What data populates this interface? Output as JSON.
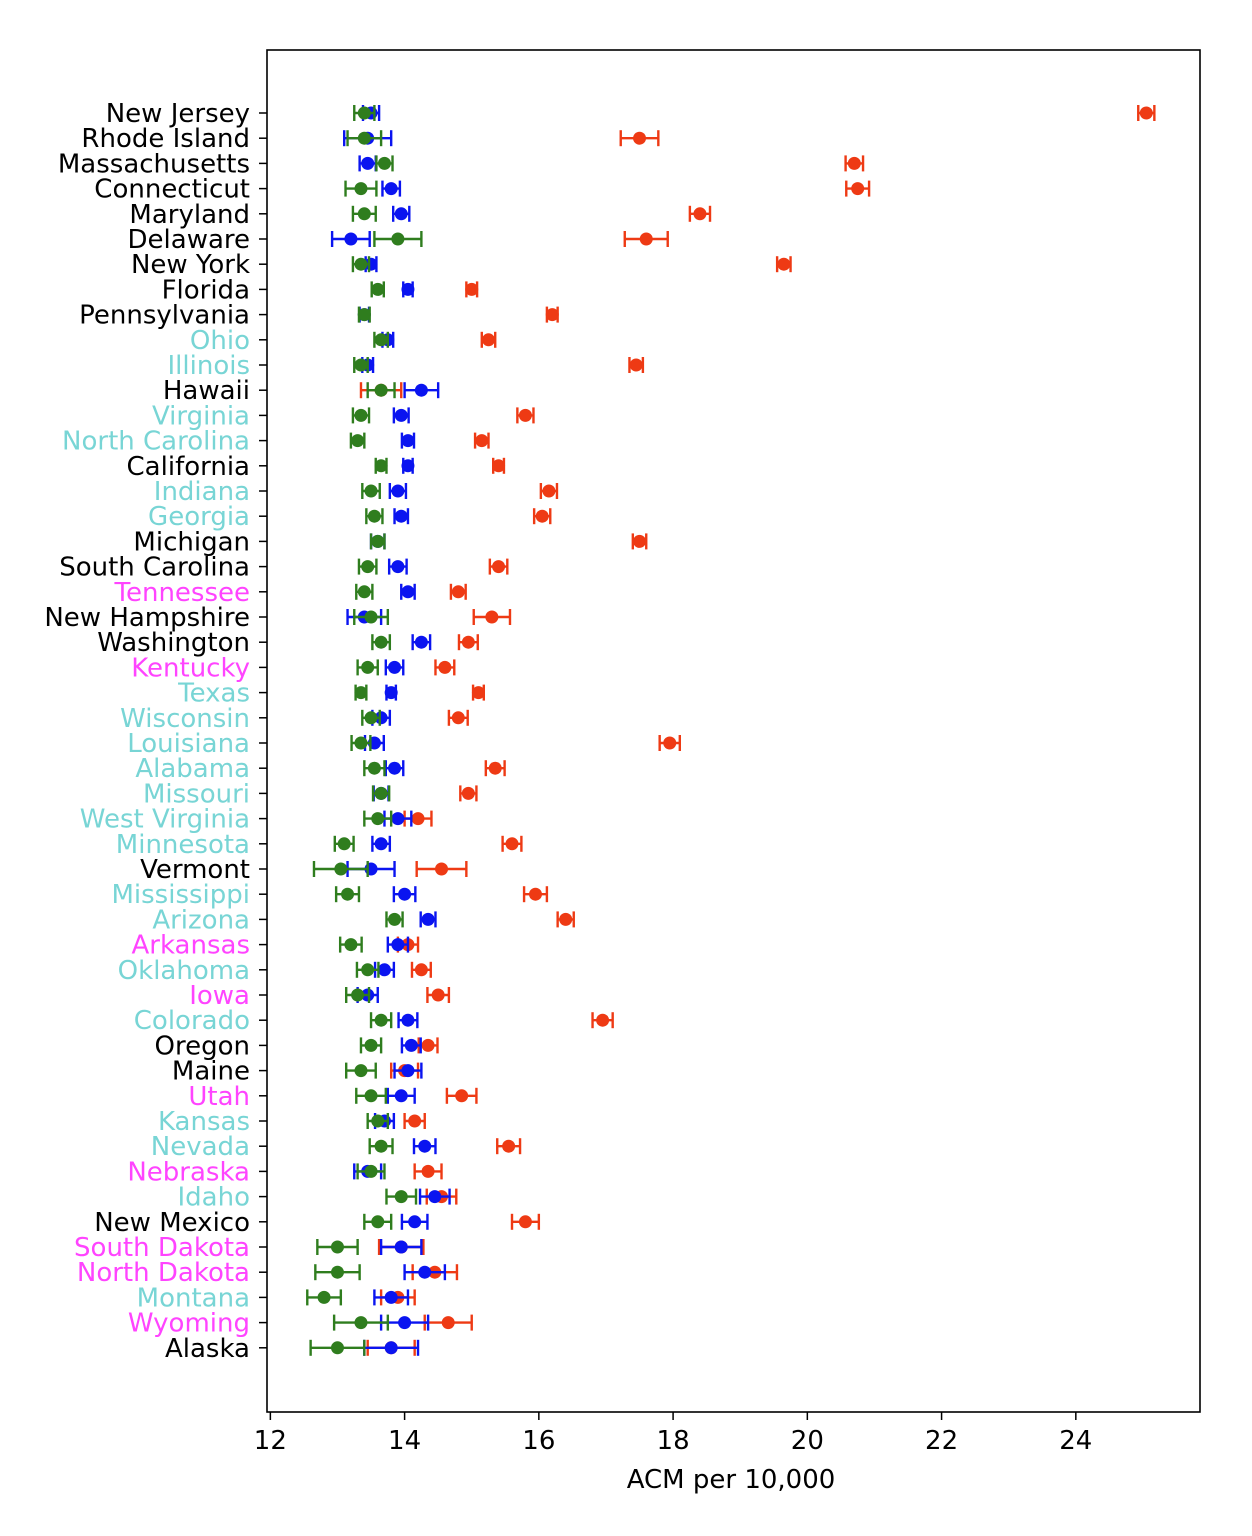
{
  "chart_data": {
    "type": "errorbar-dot",
    "title": "",
    "xlabel": "ACM per 10,000",
    "ylabel": "",
    "xlim": [
      11.95,
      25.85
    ],
    "x_ticks": [
      12,
      14,
      16,
      18,
      20,
      22,
      24
    ],
    "grid": false,
    "colors": {
      "red_series": "#ee3a14",
      "blue_series": "#0a14f0",
      "green_series": "#2f7d1e",
      "label_black": "#000000",
      "label_cyan": "#78d5d5",
      "label_magenta": "#ff44ff"
    },
    "label_color_key": [
      "black",
      "cyan",
      "magenta"
    ],
    "series_names": [
      "red",
      "blue",
      "green"
    ],
    "states": [
      {
        "name": "New Jersey",
        "label_color": "black",
        "red": [
          25.05,
          0.12
        ],
        "blue": [
          13.5,
          0.12
        ],
        "green": [
          13.4,
          0.15
        ]
      },
      {
        "name": "Rhode Island",
        "label_color": "black",
        "red": [
          17.5,
          0.28
        ],
        "blue": [
          13.45,
          0.35
        ],
        "green": [
          13.4,
          0.25
        ]
      },
      {
        "name": "Massachusetts",
        "label_color": "black",
        "red": [
          20.7,
          0.13
        ],
        "blue": [
          13.45,
          0.12
        ],
        "green": [
          13.7,
          0.12
        ]
      },
      {
        "name": "Connecticut",
        "label_color": "black",
        "red": [
          20.75,
          0.17
        ],
        "blue": [
          13.8,
          0.13
        ],
        "green": [
          13.35,
          0.23
        ]
      },
      {
        "name": "Maryland",
        "label_color": "black",
        "red": [
          18.4,
          0.15
        ],
        "blue": [
          13.95,
          0.12
        ],
        "green": [
          13.4,
          0.17
        ]
      },
      {
        "name": "Delaware",
        "label_color": "black",
        "red": [
          17.6,
          0.32
        ],
        "blue": [
          13.2,
          0.28
        ],
        "green": [
          13.9,
          0.35
        ]
      },
      {
        "name": "New York",
        "label_color": "black",
        "red": [
          19.65,
          0.1
        ],
        "blue": [
          13.5,
          0.08
        ],
        "green": [
          13.35,
          0.12
        ]
      },
      {
        "name": "Florida",
        "label_color": "black",
        "red": [
          15.0,
          0.08
        ],
        "blue": [
          14.05,
          0.07
        ],
        "green": [
          13.6,
          0.09
        ]
      },
      {
        "name": "Pennsylvania",
        "label_color": "black",
        "red": [
          16.2,
          0.08
        ],
        "blue": [
          13.4,
          0.07
        ],
        "green": [
          13.4,
          0.08
        ]
      },
      {
        "name": "Ohio",
        "label_color": "cyan",
        "red": [
          15.25,
          0.1
        ],
        "blue": [
          13.75,
          0.08
        ],
        "green": [
          13.65,
          0.1
        ]
      },
      {
        "name": "Illinois",
        "label_color": "cyan",
        "red": [
          17.45,
          0.1
        ],
        "blue": [
          13.45,
          0.08
        ],
        "green": [
          13.35,
          0.1
        ]
      },
      {
        "name": "Hawaii",
        "label_color": "black",
        "red": [
          13.65,
          0.3
        ],
        "blue": [
          14.25,
          0.25
        ],
        "green": [
          13.65,
          0.2
        ]
      },
      {
        "name": "Virginia",
        "label_color": "cyan",
        "red": [
          15.8,
          0.12
        ],
        "blue": [
          13.95,
          0.11
        ],
        "green": [
          13.35,
          0.12
        ]
      },
      {
        "name": "North Carolina",
        "label_color": "cyan",
        "red": [
          15.15,
          0.1
        ],
        "blue": [
          14.05,
          0.09
        ],
        "green": [
          13.3,
          0.1
        ]
      },
      {
        "name": "California",
        "label_color": "black",
        "red": [
          15.4,
          0.08
        ],
        "blue": [
          14.05,
          0.07
        ],
        "green": [
          13.65,
          0.08
        ]
      },
      {
        "name": "Indiana",
        "label_color": "cyan",
        "red": [
          16.15,
          0.12
        ],
        "blue": [
          13.9,
          0.12
        ],
        "green": [
          13.5,
          0.13
        ]
      },
      {
        "name": "Georgia",
        "label_color": "cyan",
        "red": [
          16.05,
          0.12
        ],
        "blue": [
          13.95,
          0.1
        ],
        "green": [
          13.55,
          0.12
        ]
      },
      {
        "name": "Michigan",
        "label_color": "black",
        "red": [
          17.5,
          0.1
        ],
        "blue": [
          13.6,
          0.1
        ],
        "green": [
          13.6,
          0.1
        ]
      },
      {
        "name": "South Carolina",
        "label_color": "black",
        "red": [
          15.4,
          0.13
        ],
        "blue": [
          13.9,
          0.13
        ],
        "green": [
          13.45,
          0.13
        ]
      },
      {
        "name": "Tennessee",
        "label_color": "magenta",
        "red": [
          14.8,
          0.11
        ],
        "blue": [
          14.05,
          0.1
        ],
        "green": [
          13.4,
          0.12
        ]
      },
      {
        "name": "New Hampshire",
        "label_color": "black",
        "red": [
          15.3,
          0.27
        ],
        "blue": [
          13.4,
          0.25
        ],
        "green": [
          13.5,
          0.25
        ]
      },
      {
        "name": "Washington",
        "label_color": "black",
        "red": [
          14.95,
          0.14
        ],
        "blue": [
          14.25,
          0.13
        ],
        "green": [
          13.65,
          0.13
        ]
      },
      {
        "name": "Kentucky",
        "label_color": "magenta",
        "red": [
          14.6,
          0.14
        ],
        "blue": [
          13.85,
          0.13
        ],
        "green": [
          13.45,
          0.15
        ]
      },
      {
        "name": "Texas",
        "label_color": "cyan",
        "red": [
          15.1,
          0.08
        ],
        "blue": [
          13.8,
          0.07
        ],
        "green": [
          13.35,
          0.08
        ]
      },
      {
        "name": "Wisconsin",
        "label_color": "cyan",
        "red": [
          14.8,
          0.14
        ],
        "blue": [
          13.65,
          0.13
        ],
        "green": [
          13.5,
          0.13
        ]
      },
      {
        "name": "Louisiana",
        "label_color": "cyan",
        "red": [
          17.95,
          0.15
        ],
        "blue": [
          13.55,
          0.14
        ],
        "green": [
          13.35,
          0.14
        ]
      },
      {
        "name": "Alabama",
        "label_color": "cyan",
        "red": [
          15.35,
          0.14
        ],
        "blue": [
          13.85,
          0.13
        ],
        "green": [
          13.55,
          0.15
        ]
      },
      {
        "name": "Missouri",
        "label_color": "cyan",
        "red": [
          14.95,
          0.12
        ],
        "blue": [
          13.65,
          0.11
        ],
        "green": [
          13.65,
          0.12
        ]
      },
      {
        "name": "West Virginia",
        "label_color": "cyan",
        "red": [
          14.2,
          0.2
        ],
        "blue": [
          13.9,
          0.2
        ],
        "green": [
          13.6,
          0.2
        ]
      },
      {
        "name": "Minnesota",
        "label_color": "cyan",
        "red": [
          15.6,
          0.14
        ],
        "blue": [
          13.65,
          0.13
        ],
        "green": [
          13.1,
          0.14
        ]
      },
      {
        "name": "Vermont",
        "label_color": "black",
        "red": [
          14.55,
          0.37
        ],
        "blue": [
          13.5,
          0.35
        ],
        "green": [
          13.05,
          0.4
        ]
      },
      {
        "name": "Mississippi",
        "label_color": "cyan",
        "red": [
          15.95,
          0.17
        ],
        "blue": [
          14.0,
          0.16
        ],
        "green": [
          13.15,
          0.17
        ]
      },
      {
        "name": "Arizona",
        "label_color": "cyan",
        "red": [
          16.4,
          0.12
        ],
        "blue": [
          14.35,
          0.11
        ],
        "green": [
          13.85,
          0.12
        ]
      },
      {
        "name": "Arkansas",
        "label_color": "magenta",
        "red": [
          14.05,
          0.15
        ],
        "blue": [
          13.9,
          0.15
        ],
        "green": [
          13.2,
          0.16
        ]
      },
      {
        "name": "Oklahoma",
        "label_color": "cyan",
        "red": [
          14.25,
          0.14
        ],
        "blue": [
          13.7,
          0.14
        ],
        "green": [
          13.45,
          0.16
        ]
      },
      {
        "name": "Iowa",
        "label_color": "magenta",
        "red": [
          14.5,
          0.16
        ],
        "blue": [
          13.45,
          0.15
        ],
        "green": [
          13.3,
          0.17
        ]
      },
      {
        "name": "Colorado",
        "label_color": "cyan",
        "red": [
          16.95,
          0.15
        ],
        "blue": [
          14.05,
          0.14
        ],
        "green": [
          13.65,
          0.15
        ]
      },
      {
        "name": "Oregon",
        "label_color": "black",
        "red": [
          14.35,
          0.14
        ],
        "blue": [
          14.1,
          0.14
        ],
        "green": [
          13.5,
          0.15
        ]
      },
      {
        "name": "Maine",
        "label_color": "black",
        "red": [
          14.0,
          0.2
        ],
        "blue": [
          14.05,
          0.2
        ],
        "green": [
          13.35,
          0.22
        ]
      },
      {
        "name": "Utah",
        "label_color": "magenta",
        "red": [
          14.85,
          0.22
        ],
        "blue": [
          13.95,
          0.2
        ],
        "green": [
          13.5,
          0.22
        ]
      },
      {
        "name": "Kansas",
        "label_color": "cyan",
        "red": [
          14.15,
          0.15
        ],
        "blue": [
          13.7,
          0.14
        ],
        "green": [
          13.6,
          0.15
        ]
      },
      {
        "name": "Nevada",
        "label_color": "cyan",
        "red": [
          15.55,
          0.17
        ],
        "blue": [
          14.3,
          0.16
        ],
        "green": [
          13.65,
          0.17
        ]
      },
      {
        "name": "Nebraska",
        "label_color": "magenta",
        "red": [
          14.35,
          0.2
        ],
        "blue": [
          13.45,
          0.2
        ],
        "green": [
          13.5,
          0.2
        ]
      },
      {
        "name": "Idaho",
        "label_color": "cyan",
        "red": [
          14.55,
          0.22
        ],
        "blue": [
          14.45,
          0.22
        ],
        "green": [
          13.95,
          0.22
        ]
      },
      {
        "name": "New Mexico",
        "label_color": "black",
        "red": [
          15.8,
          0.2
        ],
        "blue": [
          14.15,
          0.19
        ],
        "green": [
          13.6,
          0.2
        ]
      },
      {
        "name": "South Dakota",
        "label_color": "magenta",
        "red": [
          13.95,
          0.33
        ],
        "blue": [
          13.95,
          0.3
        ],
        "green": [
          13.0,
          0.3
        ]
      },
      {
        "name": "North Dakota",
        "label_color": "magenta",
        "red": [
          14.45,
          0.33
        ],
        "blue": [
          14.3,
          0.3
        ],
        "green": [
          13.0,
          0.33
        ]
      },
      {
        "name": "Montana",
        "label_color": "cyan",
        "red": [
          13.9,
          0.25
        ],
        "blue": [
          13.8,
          0.25
        ],
        "green": [
          12.8,
          0.25
        ]
      },
      {
        "name": "Wyoming",
        "label_color": "magenta",
        "red": [
          14.65,
          0.35
        ],
        "blue": [
          14.0,
          0.35
        ],
        "green": [
          13.35,
          0.4
        ]
      },
      {
        "name": "Alaska",
        "label_color": "black",
        "red": [
          13.8,
          0.35
        ],
        "blue": [
          13.8,
          0.4
        ],
        "green": [
          13.0,
          0.4
        ]
      }
    ]
  }
}
